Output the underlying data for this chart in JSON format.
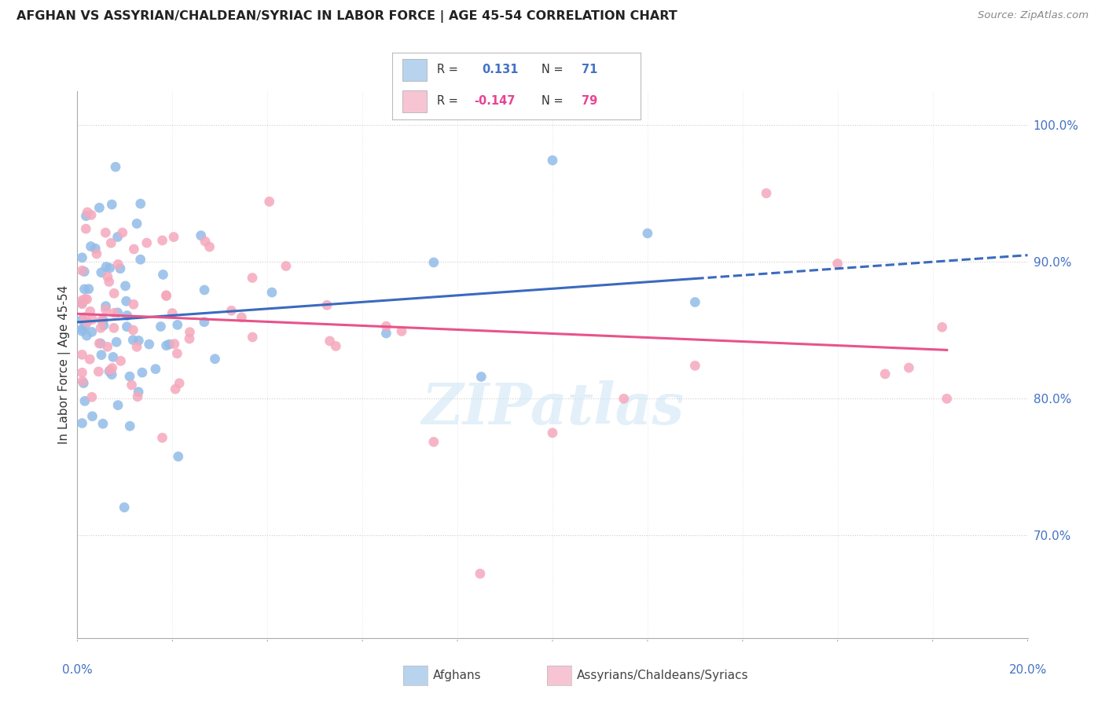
{
  "title": "AFGHAN VS ASSYRIAN/CHALDEAN/SYRIAC IN LABOR FORCE | AGE 45-54 CORRELATION CHART",
  "source": "Source: ZipAtlas.com",
  "ylabel": "In Labor Force | Age 45-54",
  "xlim": [
    0.0,
    0.2
  ],
  "ylim": [
    0.625,
    1.025
  ],
  "ytick_positions": [
    0.7,
    0.8,
    0.9,
    1.0
  ],
  "ytick_labels": [
    "70.0%",
    "80.0%",
    "90.0%",
    "100.0%"
  ],
  "afghan_color": "#92bce8",
  "assyrian_color": "#f5a8bc",
  "afghan_line_color": "#3b6abf",
  "assyrian_line_color": "#e8538a",
  "legend_afghan_fill": "#b8d3ee",
  "legend_assyrian_fill": "#f7c4d3",
  "R_afghan": 0.131,
  "N_afghan": 71,
  "R_assyrian": -0.147,
  "N_assyrian": 79,
  "watermark": "ZIPatlas",
  "afghan_seed": 12345,
  "assyrian_seed": 67890
}
